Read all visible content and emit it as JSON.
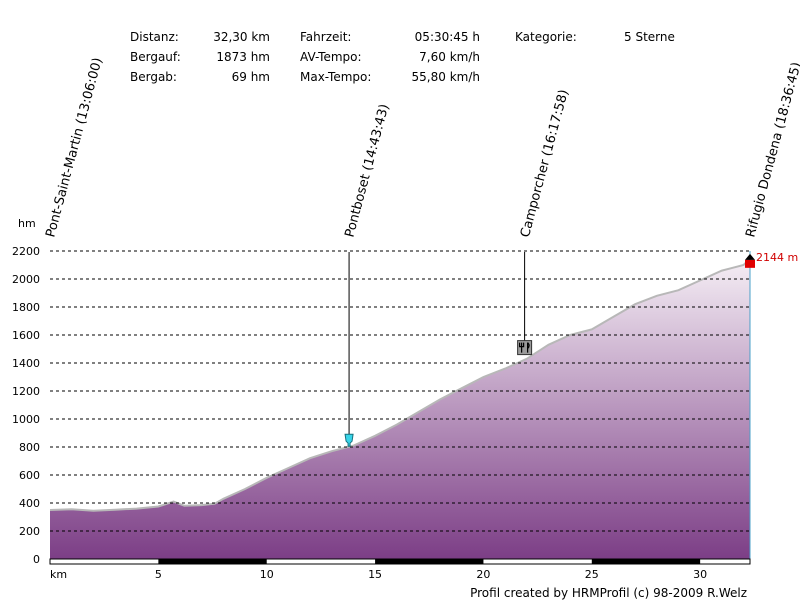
{
  "stats": {
    "col1": [
      {
        "label": "Distanz:",
        "value": "32,30 km"
      },
      {
        "label": "Bergauf:",
        "value": "1873 hm"
      },
      {
        "label": "Bergab:",
        "value": "69 hm"
      }
    ],
    "col2": [
      {
        "label": "Fahrzeit:",
        "value": "05:30:45 h"
      },
      {
        "label": "AV-Tempo:",
        "value": "7,60 km/h"
      },
      {
        "label": "Max-Tempo:",
        "value": "55,80 km/h"
      }
    ],
    "col3": [
      {
        "label": "Kategorie:",
        "value": "5 Sterne"
      }
    ]
  },
  "footer": "Profil created by HRMProfil (c) 98-2009 R.Welz",
  "chart_data": {
    "type": "area",
    "xlabel": "km",
    "ylabel": "hm",
    "xlim": [
      0,
      32.3
    ],
    "ylim": [
      0,
      2200
    ],
    "xticks": [
      5,
      10,
      15,
      20,
      25,
      30
    ],
    "yticks": [
      0,
      200,
      400,
      600,
      800,
      1000,
      1200,
      1400,
      1600,
      1800,
      2000,
      2200
    ],
    "grid": true,
    "fill_top_color": "#f5eef5",
    "fill_bottom_color": "#7c3e86",
    "line_color": "#b8b8b8",
    "x": [
      0,
      1,
      2,
      3,
      4,
      5,
      5.3,
      5.7,
      6.2,
      7,
      7.6,
      8,
      9,
      10,
      11,
      12,
      13,
      14,
      15,
      16,
      17,
      18,
      19,
      20,
      21,
      22,
      23,
      24,
      25,
      26,
      27,
      28,
      29,
      30,
      31,
      31.5,
      32,
      32.3
    ],
    "y": [
      350,
      355,
      345,
      352,
      360,
      375,
      390,
      410,
      380,
      385,
      395,
      430,
      500,
      580,
      650,
      720,
      770,
      810,
      880,
      960,
      1050,
      1140,
      1220,
      1300,
      1360,
      1430,
      1530,
      1600,
      1640,
      1730,
      1820,
      1880,
      1920,
      1990,
      2060,
      2080,
      2100,
      2144
    ],
    "waypoints": [
      {
        "label": "Pont-Saint-Martin (13:06:00)",
        "x": 0
      },
      {
        "label": "Pontboset (14:43:43)",
        "x": 13.8,
        "y": 820,
        "icon": "drink-icon"
      },
      {
        "label": "Camporcher (16:17:58)",
        "x": 21.9,
        "y": 1460,
        "icon": "restaurant-icon"
      },
      {
        "label": "Rifugio Dondena (18:36:45)",
        "x": 32.3,
        "y": 2144,
        "icon": "summit-flag-icon"
      }
    ],
    "end_label": "2144 m"
  }
}
